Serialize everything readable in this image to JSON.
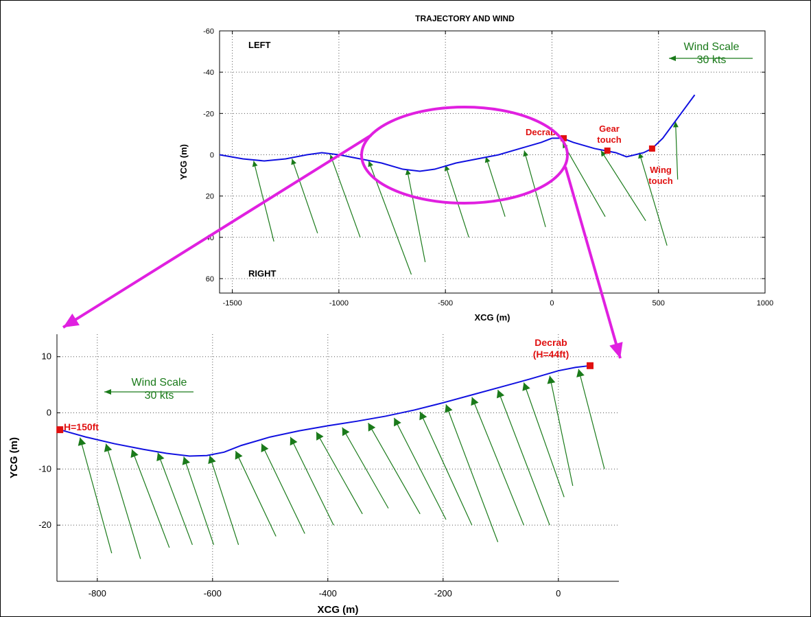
{
  "colors": {
    "trajectory": "#1010e0",
    "wind": "#1a7a1a",
    "marker": "#e01010",
    "annotation_text": "#e01010",
    "callout": "#e020e0",
    "grid": "#555555"
  },
  "chart_data": [
    {
      "type": "line",
      "title": "TRAJECTORY AND WIND",
      "xlabel": "XCG (m)",
      "ylabel": "YCG (m)",
      "xlim": [
        -1560,
        1000
      ],
      "ylim": [
        -60,
        67
      ],
      "y_reversed": true,
      "grid": true,
      "xticks": [
        "-1500",
        "-1000",
        "-500",
        "0",
        "500",
        "1000"
      ],
      "xtick_values": [
        -1500,
        -1000,
        -500,
        0,
        500,
        1000
      ],
      "yticks": [
        "-60",
        "-40",
        "-20",
        "0",
        "20",
        "40",
        "60"
      ],
      "ytick_values": [
        -60,
        -40,
        -20,
        0,
        20,
        40,
        60
      ],
      "side_labels": {
        "top": "LEFT",
        "bottom": "RIGHT"
      },
      "wind_scale": {
        "label": "Wind Scale",
        "value": "30 kts"
      },
      "trajectory": {
        "x": [
          -1560,
          -1450,
          -1350,
          -1250,
          -1150,
          -1080,
          -1000,
          -900,
          -800,
          -700,
          -620,
          -550,
          -450,
          -350,
          -250,
          -150,
          -50,
          0,
          50,
          100,
          200,
          250,
          300,
          350,
          390,
          430,
          470,
          520,
          570,
          620,
          670
        ],
        "y": [
          0,
          2,
          3,
          2,
          0,
          -1,
          0,
          2,
          4,
          7,
          8,
          7,
          4,
          2,
          0,
          -3,
          -6,
          -8,
          -8,
          -6,
          -3,
          -2,
          -1,
          1,
          0,
          -1,
          -3,
          -8,
          -15,
          -22,
          -29
        ]
      },
      "wind_arrows": [
        {
          "x": -1400,
          "y": 3,
          "tip_x": -1400,
          "tip_y": 3,
          "tail_x": -1305,
          "tail_y": 42
        },
        {
          "x": -1220,
          "y": 2,
          "tip_x": -1220,
          "tip_y": 2,
          "tail_x": -1100,
          "tail_y": 38
        },
        {
          "x": -1040,
          "y": 0,
          "tip_x": -1040,
          "tip_y": 0,
          "tail_x": -900,
          "tail_y": 40
        },
        {
          "x": -860,
          "y": 3,
          "tip_x": -860,
          "tip_y": 3,
          "tail_x": -660,
          "tail_y": 58
        },
        {
          "x": -680,
          "y": 7,
          "tip_x": -680,
          "tip_y": 7,
          "tail_x": -595,
          "tail_y": 52
        },
        {
          "x": -500,
          "y": 5,
          "tip_x": -500,
          "tip_y": 5,
          "tail_x": -390,
          "tail_y": 40
        },
        {
          "x": -310,
          "y": 1,
          "tip_x": -310,
          "tip_y": 1,
          "tail_x": -220,
          "tail_y": 30
        },
        {
          "x": -130,
          "y": -2,
          "tip_x": -130,
          "tip_y": -2,
          "tail_x": -30,
          "tail_y": 35
        },
        {
          "x": 50,
          "y": -6,
          "tip_x": 50,
          "tip_y": -6,
          "tail_x": 250,
          "tail_y": 30
        },
        {
          "x": 230,
          "y": -2,
          "tip_x": 230,
          "tip_y": -2,
          "tail_x": 440,
          "tail_y": 32
        },
        {
          "x": 410,
          "y": -1,
          "tip_x": 410,
          "tip_y": -1,
          "tail_x": 540,
          "tail_y": 44
        },
        {
          "x": 580,
          "y": -16,
          "tip_x": 580,
          "tip_y": -16,
          "tail_x": 590,
          "tail_y": 12
        }
      ],
      "markers": [
        {
          "name": "decrab",
          "label": "Decrab",
          "x": 55,
          "y": -8
        },
        {
          "name": "gear-touch",
          "label": "Gear\ntouch",
          "x": 260,
          "y": -2
        },
        {
          "name": "wing-touch",
          "label": "Wing\ntouch",
          "x": 470,
          "y": -3
        }
      ]
    },
    {
      "type": "line",
      "xlabel": "XCG (m)",
      "ylabel": "YCG (m)",
      "xlim": [
        -870,
        105
      ],
      "ylim": [
        -30,
        14
      ],
      "grid": true,
      "xticks": [
        "-800",
        "-600",
        "-400",
        "-200",
        "0"
      ],
      "xtick_values": [
        -800,
        -600,
        -400,
        -200,
        0
      ],
      "yticks": [
        "10",
        "0",
        "-10",
        "-20"
      ],
      "ytick_values": [
        10,
        0,
        -10,
        -20
      ],
      "wind_scale": {
        "label": "Wind Scale",
        "value": "30 kts"
      },
      "trajectory": {
        "x": [
          -865,
          -820,
          -770,
          -720,
          -680,
          -640,
          -610,
          -580,
          -550,
          -500,
          -450,
          -400,
          -350,
          -300,
          -250,
          -200,
          -150,
          -100,
          -50,
          0,
          30,
          55
        ],
        "y": [
          -3,
          -4.3,
          -5.5,
          -6.5,
          -7.2,
          -7.7,
          -7.6,
          -7,
          -5.8,
          -4.3,
          -3.2,
          -2.3,
          -1.5,
          -0.6,
          0.5,
          1.8,
          3.2,
          4.6,
          6,
          7.5,
          8.1,
          8.4
        ]
      },
      "wind_arrows": [
        {
          "tip_x": -830,
          "tip_y": -4.4,
          "tail_x": -775,
          "tail_y": -25
        },
        {
          "tip_x": -785,
          "tip_y": -5.5,
          "tail_x": -725,
          "tail_y": -26
        },
        {
          "tip_x": -740,
          "tip_y": -6.5,
          "tail_x": -675,
          "tail_y": -24
        },
        {
          "tip_x": -695,
          "tip_y": -7.1,
          "tail_x": -635,
          "tail_y": -23.5
        },
        {
          "tip_x": -650,
          "tip_y": -7.8,
          "tail_x": -598,
          "tail_y": -23.5
        },
        {
          "tip_x": -605,
          "tip_y": -7.6,
          "tail_x": -555,
          "tail_y": -23.5
        },
        {
          "tip_x": -560,
          "tip_y": -6.8,
          "tail_x": -490,
          "tail_y": -22
        },
        {
          "tip_x": -515,
          "tip_y": -5.5,
          "tail_x": -440,
          "tail_y": -21.5
        },
        {
          "tip_x": -465,
          "tip_y": -4.3,
          "tail_x": -390,
          "tail_y": -20
        },
        {
          "tip_x": -420,
          "tip_y": -3.4,
          "tail_x": -340,
          "tail_y": -18
        },
        {
          "tip_x": -375,
          "tip_y": -2.6,
          "tail_x": -295,
          "tail_y": -17
        },
        {
          "tip_x": -330,
          "tip_y": -1.8,
          "tail_x": -240,
          "tail_y": -18
        },
        {
          "tip_x": -285,
          "tip_y": -0.9,
          "tail_x": -195,
          "tail_y": -19
        },
        {
          "tip_x": -240,
          "tip_y": 0.2,
          "tail_x": -150,
          "tail_y": -20
        },
        {
          "tip_x": -195,
          "tip_y": 1.5,
          "tail_x": -105,
          "tail_y": -23
        },
        {
          "tip_x": -150,
          "tip_y": 2.8,
          "tail_x": -60,
          "tail_y": -20
        },
        {
          "tip_x": -105,
          "tip_y": 4.1,
          "tail_x": -15,
          "tail_y": -20
        },
        {
          "tip_x": -60,
          "tip_y": 5.4,
          "tail_x": 10,
          "tail_y": -15
        },
        {
          "tip_x": -15,
          "tip_y": 6.6,
          "tail_x": 25,
          "tail_y": -13
        },
        {
          "tip_x": 35,
          "tip_y": 7.8,
          "tail_x": 80,
          "tail_y": -10
        }
      ],
      "markers": [
        {
          "name": "h150",
          "label": "H=150ft",
          "x": -865,
          "y": -3
        },
        {
          "name": "decrab",
          "label": "Decrab\n(H=44ft)",
          "x": 55,
          "y": 8.4
        }
      ]
    }
  ]
}
